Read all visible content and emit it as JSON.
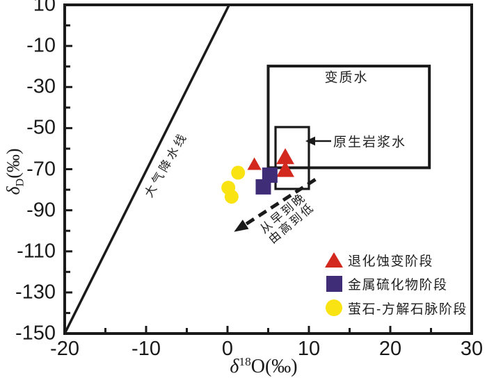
{
  "chart_data": {
    "type": "scatter",
    "title": "",
    "xlabel": {
      "delta": "δ",
      "sup": "18",
      "rest": "O(‰)"
    },
    "ylabel": {
      "delta": "δ",
      "sub": "D",
      "rest": "(‰)"
    },
    "xlim": [
      -20,
      30
    ],
    "ylim": [
      -150,
      10
    ],
    "x_ticks": [
      -20,
      -10,
      0,
      10,
      20,
      30
    ],
    "x_minor_step": 5,
    "y_ticks": [
      10,
      -10,
      -30,
      -50,
      -70,
      -90,
      -110,
      -130,
      -150
    ],
    "y_minor_step": 10,
    "grid": false,
    "legend_position": "inside-lower-right",
    "meteoric_line": {
      "label": "大气降水线",
      "from": [
        -20,
        -150
      ],
      "to": [
        0.2,
        10
      ]
    },
    "regions": [
      {
        "id": "metamorphic-water",
        "label": "变质水",
        "x_range": [
          5,
          24.8
        ],
        "y_range": [
          -69.3,
          -19.8
        ]
      },
      {
        "id": "primary-magmatic-water",
        "label": "原生岩浆水",
        "x_range": [
          5.9,
          10.0
        ],
        "y_range": [
          -79.6,
          -49.5
        ]
      }
    ],
    "trend_arrow": {
      "from": [
        10.8,
        -75
      ],
      "to": [
        0.8,
        -100.5
      ],
      "label_line1": "从早到晚",
      "label_line2": "由高到低"
    },
    "series": [
      {
        "name": "退化蚀变阶段",
        "marker": "triangle",
        "color": "#d2281e",
        "points": [
          [
            3.3,
            -67.8
          ],
          [
            7.1,
            -64.3
          ],
          [
            7.1,
            -70.5
          ]
        ],
        "sizes": [
          18,
          23,
          23
        ]
      },
      {
        "name": "金属硫化物阶段",
        "marker": "square",
        "color": "#3f2d78",
        "points": [
          [
            5.2,
            -72.9
          ],
          [
            4.4,
            -78.6
          ]
        ],
        "size": 22
      },
      {
        "name": "萤石-方解石脉阶段",
        "marker": "circle",
        "color": "#f9e313",
        "points": [
          [
            1.3,
            -71.7
          ],
          [
            0.1,
            -79.0
          ],
          [
            0.5,
            -83.4
          ]
        ],
        "size": 10
      }
    ]
  },
  "colors": {
    "axis": "#1a1a1a",
    "background": "#ffffff"
  }
}
